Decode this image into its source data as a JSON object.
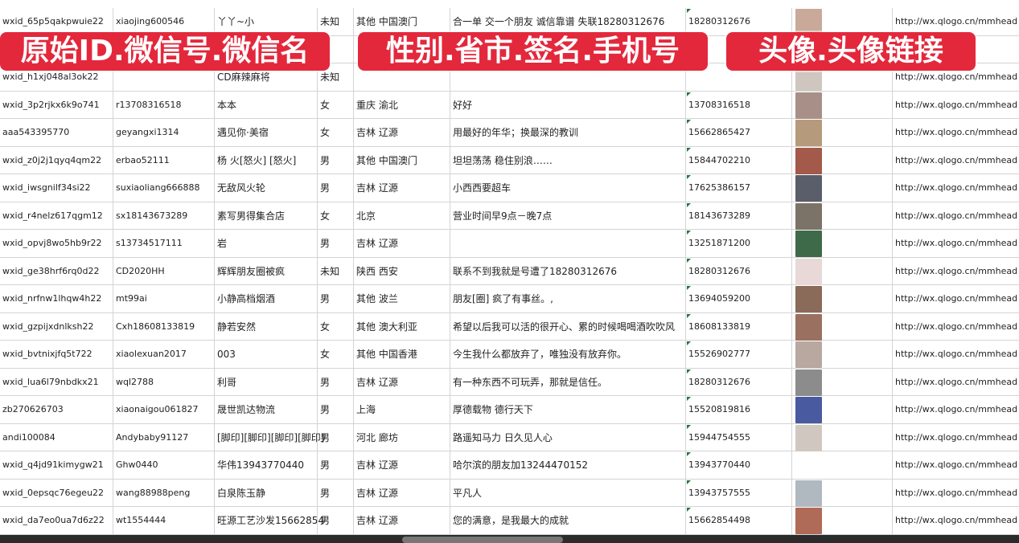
{
  "banners": [
    "原始ID.微信号.微信名",
    "性别.省市.签名.手机号",
    "头像.头像链接"
  ],
  "colors": {
    "banner": "#e3283c",
    "grid": "#d4d4d4",
    "marker": "#1f7a3a"
  },
  "rows": [
    [
      "wxid_65p5qakpwuie22",
      "xiaojing600546",
      "丫丫~小",
      "未知",
      "其他 中国澳门",
      "合一单 交一个朋友 诚信靠谱 失联18280312676",
      "18280312676",
      "",
      "http://wx.qlogo.cn/mmhead"
    ],
    [
      "",
      "",
      "",
      "",
      "",
      "",
      "",
      "",
      ""
    ],
    [
      "wxid_h1xj048al3ok22",
      "",
      "CD麻辣麻将",
      "未知",
      "",
      "",
      "",
      "",
      "http://wx.qlogo.cn/mmhead"
    ],
    [
      "wxid_3p2rjkx6k9o741",
      "r13708316518",
      "本本",
      "女",
      "重庆 渝北",
      "好好",
      "13708316518",
      "",
      "http://wx.qlogo.cn/mmhead"
    ],
    [
      "aaa543395770",
      "geyangxi1314",
      "遇见你·美宿",
      "女",
      "吉林 辽源",
      "用最好的年华；换最深的教训",
      "15662865427",
      "",
      "http://wx.qlogo.cn/mmhead"
    ],
    [
      "wxid_z0j2j1qyq4qm22",
      "erbao52111",
      "杨 火[怒火] [怒火]",
      "男",
      "其他 中国澳门",
      "坦坦荡荡 稳住别浪……",
      "15844702210",
      "",
      "http://wx.qlogo.cn/mmhead"
    ],
    [
      "wxid_iwsgnilf34si22",
      "suxiaoliang666888",
      "无敌风火轮",
      "男",
      "吉林 辽源",
      "小西西要超车",
      "17625386157",
      "",
      "http://wx.qlogo.cn/mmhead"
    ],
    [
      "wxid_r4nelz617qgm12",
      "sx18143673289",
      "素写男得集合店",
      "女",
      "北京",
      "营业时间早9点－晚7点",
      "18143673289",
      "",
      "http://wx.qlogo.cn/mmhead"
    ],
    [
      "wxid_opvj8wo5hb9r22",
      "s13734517111",
      "岩",
      "男",
      "吉林 辽源",
      "",
      "13251871200",
      "",
      "http://wx.qlogo.cn/mmhead"
    ],
    [
      "wxid_ge38hrf6rq0d22",
      "CD2020HH",
      "辉辉朋友圈被疯",
      "未知",
      "陕西 西安",
      "联系不到我就是号遭了18280312676",
      "18280312676",
      "",
      "http://wx.qlogo.cn/mmhead"
    ],
    [
      "wxid_nrfnw1lhqw4h22",
      "mt99ai",
      "小静高档烟酒",
      "男",
      "其他 波兰",
      "朋友[圈] 疯了有事丝。,",
      "13694059200",
      "",
      "http://wx.qlogo.cn/mmhead"
    ],
    [
      "wxid_gzpijxdnlksh22",
      "Cxh18608133819",
      "静若安然",
      "女",
      "其他 澳大利亚",
      "希望以后我可以活的很开心、累的时候喝喝酒吹吹风",
      "18608133819",
      "",
      "http://wx.qlogo.cn/mmhead"
    ],
    [
      "wxid_bvtnixjfq5t722",
      "xiaolexuan2017",
      "003",
      "女",
      "其他 中国香港",
      "今生我什么都放弃了，唯独没有放弃你。",
      "15526902777",
      "",
      "http://wx.qlogo.cn/mmhead"
    ],
    [
      "wxid_lua6l79nbdkx21",
      "wql2788",
      "利哥",
      "男",
      "吉林 辽源",
      "有一种东西不可玩弄，那就是信任。",
      "18280312676",
      "",
      "http://wx.qlogo.cn/mmhead"
    ],
    [
      "zb270626703",
      "xiaonaigou061827",
      "晟世凯达物流",
      "男",
      "上海",
      "厚德载物 德行天下",
      "15520819816",
      "",
      "http://wx.qlogo.cn/mmhead"
    ],
    [
      "andi100084",
      "Andybaby91127",
      "[脚印][脚印][脚印][脚印]",
      "男",
      "河北 廊坊",
      "路遥知马力 日久见人心",
      "15944754555",
      "",
      "http://wx.qlogo.cn/mmhead"
    ],
    [
      "wxid_q4jd91kimygw21",
      "Ghw0440",
      "华伟13943770440",
      "男",
      "吉林 辽源",
      "哈尔滨的朋友加13244470152",
      "13943770440",
      "",
      "http://wx.qlogo.cn/mmhead"
    ],
    [
      "wxid_0epsqc76egeu22",
      "wang88988peng",
      "白泉陈玉静",
      "男",
      "吉林 辽源",
      "平凡人",
      "13943757555",
      "",
      "http://wx.qlogo.cn/mmhead"
    ],
    [
      "wxid_da7eo0ua7d6z22",
      "wt1554444",
      "旺源工艺沙发15662854",
      "男",
      "吉林 辽源",
      "您的满意，是我最大的成就",
      "15662854498",
      "",
      "http://wx.qlogo.cn/mmhead"
    ]
  ],
  "avatar_colors": [
    "#c9a99a",
    "#6a7fa8",
    "#cfc6c0",
    "#a89088",
    "#b59a7c",
    "#a45a4a",
    "#5a5e6a",
    "#7c7368",
    "#3f6a4a",
    "#e8d8d8",
    "#8a6a58",
    "#9a7060",
    "#b8a8a0",
    "#8c8c8c",
    "#4a5aa0",
    "#d0c8c0",
    "#ffffff",
    "#b0b8c0",
    "#b06a58"
  ]
}
